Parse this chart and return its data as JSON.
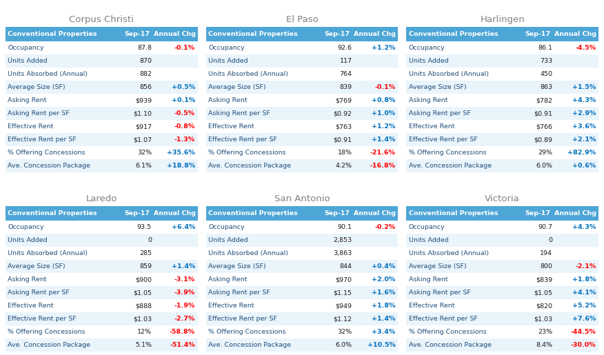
{
  "cities": [
    "Corpus Christi",
    "El Paso",
    "Harlingen",
    "Laredo",
    "San Antonio",
    "Victoria"
  ],
  "header_bg": "#4da6d6",
  "header_text_color": "#ffffff",
  "row_bg_light": "#eaf4fb",
  "row_bg_white": "#ffffff",
  "pos_color": "#0070c0",
  "neg_color": "#ff0000",
  "title_color": "#808080",
  "row_text_color": "#1f4e79",
  "col_header": [
    "Conventional Properties",
    "Sep-17",
    "Annual Chg"
  ],
  "rows": [
    "Occupancy",
    "Units Added",
    "Units Absorbed (Annual)",
    "Average Size (SF)",
    "Asking Rent",
    "Asking Rent per SF",
    "Effective Rent",
    "Effective Rent per SF",
    "% Offering Concessions",
    "Ave. Concession Package"
  ],
  "data": {
    "Corpus Christi": {
      "sep17": [
        "87.8",
        "870",
        "882",
        "856",
        "$939",
        "$1.10",
        "$917",
        "$1.07",
        "32%",
        "6.1%"
      ],
      "annual": [
        "-0.1%",
        "",
        "",
        "+0.5%",
        "+0.1%",
        "-0.5%",
        "-0.8%",
        "-1.3%",
        "+35.6%",
        "+18.8%"
      ]
    },
    "El Paso": {
      "sep17": [
        "92.6",
        "117",
        "764",
        "839",
        "$769",
        "$0.92",
        "$763",
        "$0.91",
        "18%",
        "4.2%"
      ],
      "annual": [
        "+1.2%",
        "",
        "",
        "-0.1%",
        "+0.8%",
        "+1.0%",
        "+1.2%",
        "+1.4%",
        "-21.6%",
        "-16.8%"
      ]
    },
    "Harlingen": {
      "sep17": [
        "86.1",
        "733",
        "450",
        "863",
        "$782",
        "$0.91",
        "$766",
        "$0.89",
        "29%",
        "6.0%"
      ],
      "annual": [
        "-4.5%",
        "",
        "",
        "+1.5%",
        "+4.3%",
        "+2.9%",
        "+3.6%",
        "+2.1%",
        "+82.9%",
        "+0.6%"
      ]
    },
    "Laredo": {
      "sep17": [
        "93.5",
        "0",
        "285",
        "859",
        "$900",
        "$1.05",
        "$888",
        "$1.03",
        "12%",
        "5.1%"
      ],
      "annual": [
        "+6.4%",
        "",
        "",
        "+1.4%",
        "-3.1%",
        "-3.9%",
        "-1.9%",
        "-2.7%",
        "-58.8%",
        "-51.4%"
      ]
    },
    "San Antonio": {
      "sep17": [
        "90.1",
        "2,853",
        "3,863",
        "844",
        "$970",
        "$1.15",
        "$949",
        "$1.12",
        "32%",
        "6.0%"
      ],
      "annual": [
        "-0.2%",
        "",
        "",
        "+0.4%",
        "+2.0%",
        "+1.6%",
        "+1.8%",
        "+1.4%",
        "+3.4%",
        "+10.5%"
      ]
    },
    "Victoria": {
      "sep17": [
        "90.7",
        "0",
        "194",
        "800",
        "$839",
        "$1.05",
        "$820",
        "$1.03",
        "23%",
        "8.4%"
      ],
      "annual": [
        "+4.3%",
        "",
        "",
        "-2.1%",
        "+1.8%",
        "+4.1%",
        "+5.2%",
        "+7.6%",
        "-44.5%",
        "-30.0%"
      ]
    }
  },
  "fig_width": 8.76,
  "fig_height": 5.15,
  "dpi": 100,
  "col_props": [
    0.535,
    0.245,
    0.22
  ],
  "title_fontsize": 9.5,
  "header_fontsize": 6.8,
  "data_fontsize": 6.8
}
